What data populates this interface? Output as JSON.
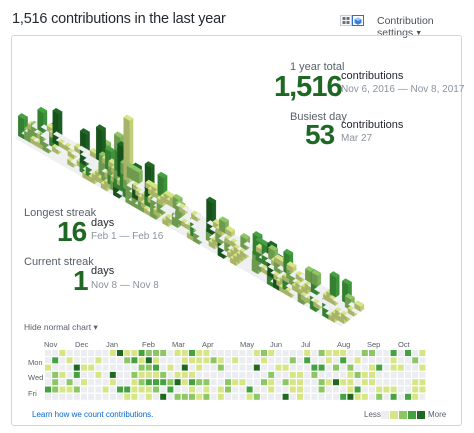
{
  "header": {
    "title": "1,516 contributions in the last year",
    "settings_label": "Contribution settings"
  },
  "stats": {
    "total_label": "1 year total",
    "total_value": "1,516",
    "total_unit": "contributions",
    "total_range": "Nov 6, 2016 — Nov 8, 2017",
    "busiest_label": "Busiest day",
    "busiest_value": "53",
    "busiest_unit": "contributions",
    "busiest_date": "Mar 27",
    "longest_label": "Longest streak",
    "longest_value": "16",
    "longest_unit": "days",
    "longest_range": "Feb 1 — Feb 16",
    "current_label": "Current streak",
    "current_value": "1",
    "current_unit": "days",
    "current_range": "Nov 8 — Nov 8"
  },
  "calendar": {
    "toggle_label": "Hide normal chart",
    "months": [
      "Nov",
      "Dec",
      "Jan",
      "Feb",
      "Mar",
      "Apr",
      "May",
      "Jun",
      "Jul",
      "Aug",
      "Sep",
      "Oct"
    ],
    "day_labels": [
      "Mon",
      "Wed",
      "Fri"
    ],
    "learn_link": "Learn how we count contributions.",
    "legend_less": "Less",
    "legend_more": "More"
  },
  "colors": {
    "levels": [
      "#ebedf0",
      "#d6e685",
      "#8cc665",
      "#44a340",
      "#1e6823"
    ],
    "accent": "#1e6823",
    "link": "#0366d6"
  },
  "icons": [
    "grid-view-icon",
    "isometric-view-icon",
    "caret-down-icon"
  ]
}
